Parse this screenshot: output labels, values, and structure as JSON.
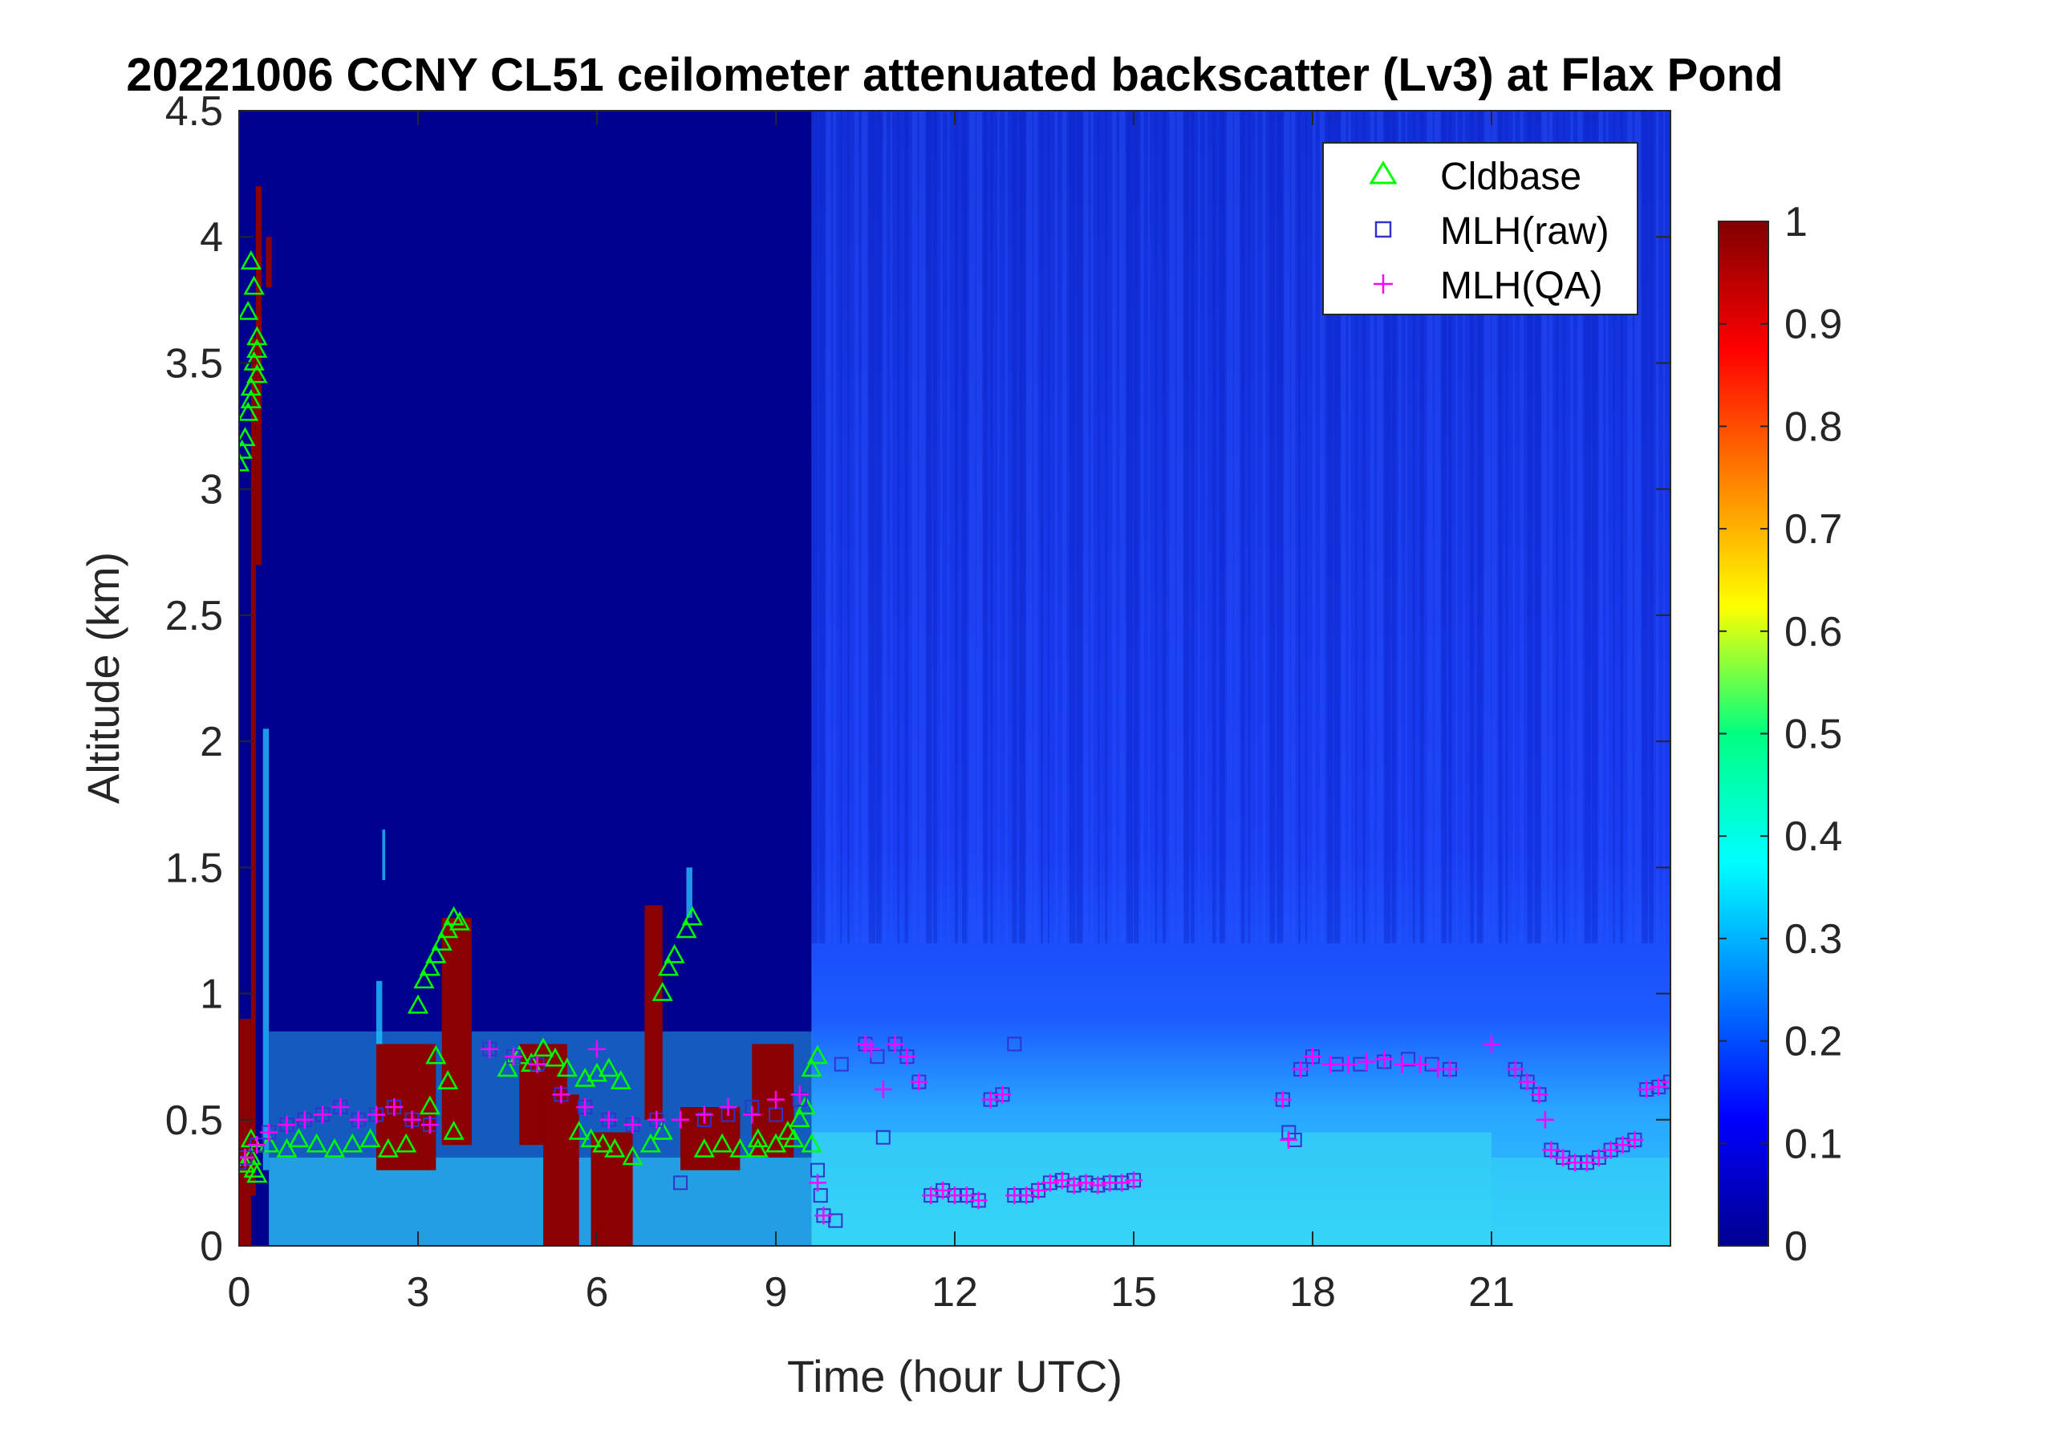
{
  "chart_data": {
    "type": "heatmap",
    "title": "20221006 CCNY CL51 ceilometer attenuated backscatter (Lv3) at Flax Pond",
    "xlabel": "Time (hour UTC)",
    "ylabel": "Altitude (km)",
    "xlim": [
      0,
      24
    ],
    "ylim": [
      0,
      4.5
    ],
    "x_ticks": [
      0,
      3,
      6,
      9,
      12,
      15,
      18,
      21
    ],
    "x_tick_labels": [
      "0",
      "3",
      "6",
      "9",
      "12",
      "15",
      "18",
      "21"
    ],
    "y_ticks": [
      0,
      0.5,
      1,
      1.5,
      2,
      2.5,
      3,
      3.5,
      4,
      4.5
    ],
    "y_tick_labels": [
      "0",
      "0.5",
      "1",
      "1.5",
      "2",
      "2.5",
      "3",
      "3.5",
      "4",
      "4.5"
    ],
    "colorbar": {
      "colormap": "jet",
      "range": [
        0,
        1
      ],
      "ticks": [
        0,
        0.1,
        0.2,
        0.3,
        0.4,
        0.5,
        0.6,
        0.7,
        0.8,
        0.9,
        1
      ],
      "tick_labels": [
        "0",
        "0.1",
        "0.2",
        "0.3",
        "0.4",
        "0.5",
        "0.6",
        "0.7",
        "0.8",
        "0.9",
        "1"
      ]
    },
    "legend": {
      "placement": "top-right",
      "entries": [
        {
          "label": "Cldbase",
          "marker": "triangle",
          "color": "#00ff00"
        },
        {
          "label": "MLH(raw)",
          "marker": "square",
          "color": "#3333cc"
        },
        {
          "label": "MLH(QA)",
          "marker": "plus",
          "color": "#ff00ff"
        }
      ]
    },
    "series": [
      {
        "name": "Cldbase",
        "marker": "triangle",
        "color": "#00ff00",
        "x": [
          0.0,
          0.05,
          0.1,
          0.15,
          0.2,
          0.25,
          0.3,
          0.15,
          0.2,
          0.25,
          0.3,
          0.2,
          0.3,
          0.25,
          0.3,
          0.2,
          0.1,
          0.2,
          0.5,
          0.8,
          1.0,
          1.3,
          1.6,
          1.9,
          2.2,
          2.5,
          2.8,
          3.0,
          3.1,
          3.2,
          3.3,
          3.4,
          3.5,
          3.6,
          3.7,
          3.2,
          3.3,
          3.5,
          3.6,
          4.5,
          4.7,
          4.9,
          5.1,
          5.3,
          5.5,
          5.8,
          6.0,
          6.2,
          6.4,
          5.7,
          5.9,
          6.1,
          6.3,
          6.6,
          6.9,
          7.1,
          7.2,
          7.3,
          7.5,
          7.6,
          7.1,
          7.8,
          8.1,
          8.4,
          8.7,
          9.0,
          9.2,
          9.4,
          9.5,
          9.6,
          9.7,
          9.6,
          9.3,
          9.0,
          8.7
        ],
        "y": [
          3.1,
          3.15,
          3.2,
          3.3,
          3.4,
          3.5,
          3.6,
          3.7,
          3.9,
          3.8,
          3.45,
          3.35,
          3.55,
          0.3,
          0.28,
          0.35,
          0.32,
          0.42,
          0.4,
          0.38,
          0.42,
          0.4,
          0.38,
          0.4,
          0.42,
          0.38,
          0.4,
          0.95,
          1.05,
          1.1,
          1.15,
          1.2,
          1.25,
          1.3,
          1.28,
          0.55,
          0.75,
          0.65,
          0.45,
          0.7,
          0.75,
          0.72,
          0.78,
          0.74,
          0.7,
          0.66,
          0.68,
          0.7,
          0.65,
          0.45,
          0.42,
          0.4,
          0.38,
          0.35,
          0.4,
          1.0,
          1.1,
          1.15,
          1.25,
          1.3,
          0.45,
          0.38,
          0.4,
          0.38,
          0.42,
          0.4,
          0.45,
          0.5,
          0.55,
          0.7,
          0.75,
          0.4,
          0.42,
          0.4,
          0.38
        ]
      },
      {
        "name": "MLH(raw)",
        "marker": "square",
        "color": "#3333cc",
        "x": [
          0.0,
          0.1,
          0.3,
          0.5,
          0.8,
          1.1,
          1.4,
          1.7,
          2.0,
          2.3,
          2.6,
          2.9,
          3.2,
          4.2,
          4.6,
          5.0,
          5.4,
          5.8,
          6.2,
          6.6,
          7.0,
          7.4,
          7.8,
          8.2,
          8.6,
          9.0,
          9.4,
          9.7,
          9.75,
          9.8,
          10.0,
          10.1,
          10.5,
          10.7,
          10.8,
          11.0,
          11.2,
          11.4,
          11.6,
          11.8,
          12.0,
          12.2,
          12.4,
          12.6,
          12.8,
          13.0,
          13.0,
          13.2,
          13.4,
          13.6,
          13.8,
          14.0,
          14.2,
          14.4,
          14.6,
          14.8,
          15.0,
          17.5,
          17.6,
          17.7,
          17.8,
          18.0,
          18.4,
          18.8,
          19.2,
          19.6,
          20.0,
          20.3,
          21.4,
          21.6,
          21.8,
          22.0,
          22.2,
          22.4,
          22.6,
          22.8,
          23.0,
          23.2,
          23.4,
          23.6,
          23.8,
          24.0
        ],
        "y": [
          0.33,
          0.35,
          0.4,
          0.45,
          0.48,
          0.5,
          0.52,
          0.55,
          0.5,
          0.52,
          0.55,
          0.5,
          0.48,
          0.78,
          0.75,
          0.72,
          0.6,
          0.55,
          0.5,
          0.48,
          0.5,
          0.25,
          0.5,
          0.52,
          0.55,
          0.52,
          0.58,
          0.3,
          0.2,
          0.12,
          0.1,
          0.72,
          0.8,
          0.75,
          0.43,
          0.8,
          0.75,
          0.65,
          0.2,
          0.22,
          0.2,
          0.2,
          0.18,
          0.58,
          0.6,
          0.8,
          0.2,
          0.2,
          0.22,
          0.25,
          0.26,
          0.24,
          0.25,
          0.24,
          0.25,
          0.25,
          0.26,
          0.58,
          0.45,
          0.42,
          0.7,
          0.75,
          0.72,
          0.72,
          0.73,
          0.74,
          0.72,
          0.7,
          0.7,
          0.65,
          0.6,
          0.38,
          0.35,
          0.33,
          0.33,
          0.35,
          0.38,
          0.4,
          0.42,
          0.62,
          0.63,
          0.65
        ]
      },
      {
        "name": "MLH(QA)",
        "marker": "plus",
        "color": "#ff00ff",
        "x": [
          0.1,
          0.3,
          0.5,
          0.8,
          1.1,
          1.4,
          1.7,
          2.0,
          2.3,
          2.6,
          2.9,
          3.2,
          4.2,
          4.6,
          5.0,
          5.4,
          5.8,
          6.0,
          6.2,
          6.6,
          7.0,
          7.4,
          7.8,
          8.2,
          8.6,
          9.0,
          9.4,
          9.7,
          9.8,
          10.5,
          10.6,
          10.8,
          11.0,
          11.2,
          11.4,
          11.6,
          11.8,
          12.0,
          12.2,
          12.4,
          12.6,
          12.8,
          13.0,
          13.2,
          13.4,
          13.6,
          13.8,
          14.0,
          14.2,
          14.4,
          14.6,
          14.8,
          15.0,
          17.5,
          17.6,
          17.8,
          18.0,
          18.3,
          18.6,
          18.9,
          19.2,
          19.5,
          19.8,
          20.1,
          20.3,
          21.0,
          21.4,
          21.6,
          21.8,
          21.9,
          22.0,
          22.2,
          22.4,
          22.6,
          22.8,
          23.0,
          23.2,
          23.4,
          23.6,
          23.8,
          24.0
        ],
        "y": [
          0.35,
          0.4,
          0.45,
          0.48,
          0.5,
          0.52,
          0.55,
          0.5,
          0.52,
          0.55,
          0.5,
          0.48,
          0.78,
          0.75,
          0.72,
          0.6,
          0.55,
          0.78,
          0.5,
          0.48,
          0.5,
          0.5,
          0.52,
          0.55,
          0.52,
          0.58,
          0.6,
          0.25,
          0.12,
          0.8,
          0.78,
          0.62,
          0.8,
          0.75,
          0.65,
          0.2,
          0.22,
          0.2,
          0.2,
          0.18,
          0.58,
          0.6,
          0.2,
          0.2,
          0.22,
          0.25,
          0.26,
          0.24,
          0.25,
          0.24,
          0.25,
          0.25,
          0.26,
          0.58,
          0.42,
          0.7,
          0.75,
          0.72,
          0.72,
          0.73,
          0.74,
          0.72,
          0.72,
          0.7,
          0.7,
          0.8,
          0.7,
          0.65,
          0.6,
          0.5,
          0.38,
          0.35,
          0.33,
          0.33,
          0.35,
          0.38,
          0.4,
          0.42,
          0.62,
          0.63,
          0.65
        ]
      }
    ],
    "backscatter_layers": [
      {
        "t0": 0.0,
        "t1": 9.6,
        "regime": "night",
        "boundary_layer_top_km": 0.85,
        "background_value": 0.0
      },
      {
        "t0": 9.6,
        "t1": 24.0,
        "regime": "day",
        "aerosol_layer_top_km": 0.9,
        "free_troposphere_value": 0.12,
        "surface_value": 0.33
      }
    ]
  }
}
